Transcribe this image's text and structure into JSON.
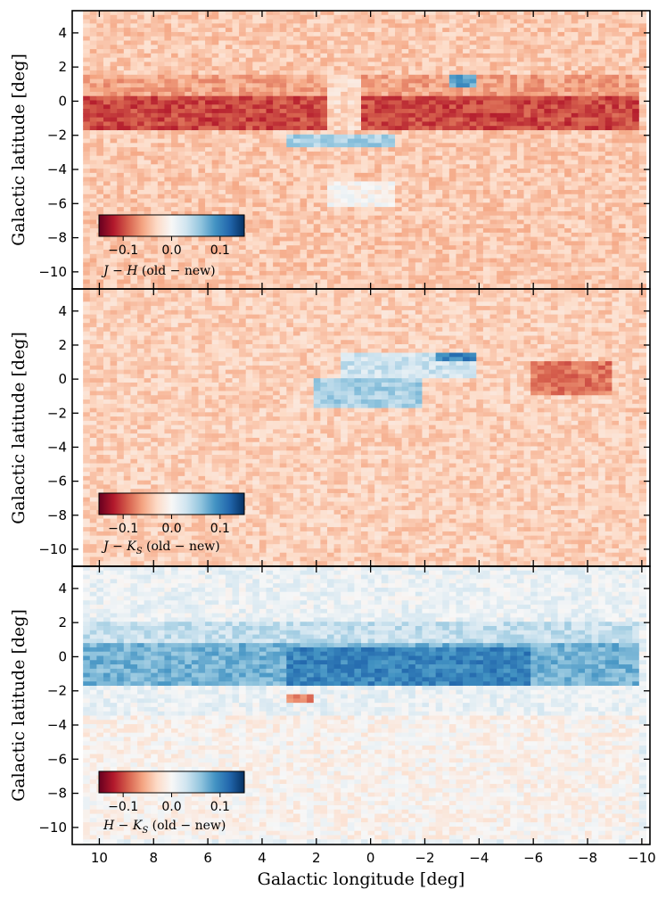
{
  "chart_data": {
    "type": "heatmap",
    "x": {
      "label": "Galactic longitude [deg]",
      "range": [
        11,
        -10.3
      ],
      "ticks": [
        10,
        8,
        6,
        4,
        2,
        0,
        -2,
        -4,
        -6,
        -8,
        -10
      ],
      "tick_labels": [
        "10",
        "8",
        "6",
        "4",
        "2",
        "0",
        "−2",
        "−4",
        "−6",
        "−8",
        "−10"
      ]
    },
    "y": {
      "label": "Galactic latitude [deg]",
      "range": [
        -11,
        5.3
      ],
      "ticks": [
        4,
        2,
        0,
        -2,
        -4,
        -6,
        -8,
        -10
      ],
      "tick_labels": [
        "4",
        "2",
        "0",
        "−2",
        "−4",
        "−6",
        "−8",
        "−10"
      ]
    },
    "colormap": {
      "name": "RdBu",
      "range": [
        -0.15,
        0.15
      ],
      "stops": [
        "#67001f",
        "#b2182b",
        "#d6604d",
        "#f4a582",
        "#fddbc7",
        "#f7f7f7",
        "#d1e5f0",
        "#92c5de",
        "#4393c3",
        "#2166ac",
        "#053061"
      ]
    },
    "panels": [
      {
        "color_index": "J − H",
        "cbar_label_main": "J − H",
        "cbar_label_suffix": " (old − new)",
        "cbar_ticks": [
          -0.1,
          0.0,
          0.1
        ],
        "cbar_tick_labels": [
          "−0.1",
          "0.0",
          "0.1"
        ],
        "background_value": -0.04,
        "features": [
          {
            "type": "band",
            "l_range": [
              10.6,
              -10
            ],
            "b_range": [
              -1.6,
              0.4
            ],
            "value": -0.1
          },
          {
            "type": "band",
            "l_range": [
              10.6,
              -10
            ],
            "b_range": [
              0.4,
              1.6
            ],
            "value": -0.06
          },
          {
            "type": "band",
            "l_range": [
              1.5,
              0.3
            ],
            "b_range": [
              -1.6,
              1.6
            ],
            "value": -0.03
          },
          {
            "type": "band",
            "l_range": [
              3,
              -1
            ],
            "b_range": [
              -2.8,
              -2
            ],
            "value": 0.05
          },
          {
            "type": "band",
            "l_range": [
              1.5,
              -1
            ],
            "b_range": [
              -6.3,
              -4.8
            ],
            "value": -0.005
          },
          {
            "type": "band",
            "l_range": [
              -3,
              -4
            ],
            "b_range": [
              0.8,
              1.6
            ],
            "value": 0.08
          }
        ]
      },
      {
        "color_index": "J − Ks",
        "cbar_label_main": "J − K",
        "cbar_label_sub": "S",
        "cbar_label_suffix": " (old − new)",
        "cbar_ticks": [
          -0.1,
          0.0,
          0.1
        ],
        "cbar_tick_labels": [
          "−0.1",
          "0.0",
          "0.1"
        ],
        "background_value": -0.035,
        "features": [
          {
            "type": "band",
            "l_range": [
              -6,
              -9
            ],
            "b_range": [
              -1,
              1
            ],
            "value": -0.08
          },
          {
            "type": "band",
            "l_range": [
              2,
              -2
            ],
            "b_range": [
              -1.8,
              0
            ],
            "value": 0.05
          },
          {
            "type": "band",
            "l_range": [
              1,
              -4
            ],
            "b_range": [
              0,
              1.6
            ],
            "value": 0.03
          },
          {
            "type": "band",
            "l_range": [
              -2.5,
              -4
            ],
            "b_range": [
              1,
              1.6
            ],
            "value": 0.1
          }
        ]
      },
      {
        "color_index": "H − Ks",
        "cbar_label_main": "H − K",
        "cbar_label_sub": "S",
        "cbar_label_suffix": " (old − new)",
        "cbar_ticks": [
          -0.1,
          0.0,
          0.1
        ],
        "cbar_tick_labels": [
          "−0.1",
          "0.0",
          "0.1"
        ],
        "background_value": 0.01,
        "features": [
          {
            "type": "band",
            "l_range": [
              10.6,
              -10
            ],
            "b_range": [
              -1.6,
              0.8
            ],
            "value": 0.07
          },
          {
            "type": "band",
            "l_range": [
              10.6,
              -10
            ],
            "b_range": [
              0.8,
              2
            ],
            "value": 0.035
          },
          {
            "type": "band",
            "l_range": [
              3,
              -6
            ],
            "b_range": [
              -1.8,
              0.5
            ],
            "value": 0.1
          },
          {
            "type": "band",
            "l_range": [
              3,
              2
            ],
            "b_range": [
              -2.6,
              -2.1
            ],
            "value": -0.07
          },
          {
            "type": "band",
            "l_range": [
              10.6,
              -10
            ],
            "b_range": [
              -10.8,
              -3.5
            ],
            "value": -0.006
          }
        ]
      }
    ]
  }
}
